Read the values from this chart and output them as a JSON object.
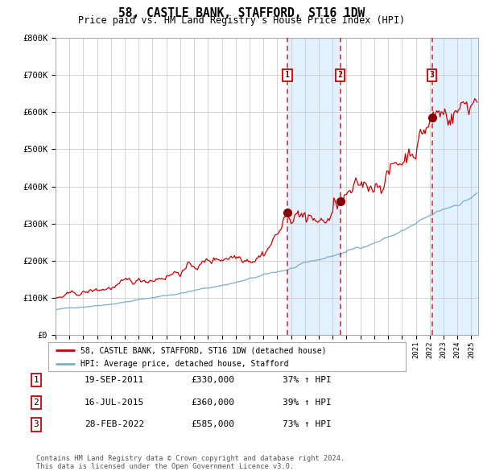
{
  "title": "58, CASTLE BANK, STAFFORD, ST16 1DW",
  "subtitle": "Price paid vs. HM Land Registry's House Price Index (HPI)",
  "ylim": [
    0,
    800000
  ],
  "yticks": [
    0,
    100000,
    200000,
    300000,
    400000,
    500000,
    600000,
    700000,
    800000
  ],
  "ytick_labels": [
    "£0",
    "£100K",
    "£200K",
    "£300K",
    "£400K",
    "£500K",
    "£600K",
    "£700K",
    "£800K"
  ],
  "red_line_color": "#cc0000",
  "blue_line_color": "#7aadcc",
  "bg_color": "#ffffff",
  "grid_color": "#cccccc",
  "sale_dates": [
    2011.72,
    2015.54,
    2022.16
  ],
  "sale_prices": [
    330000,
    360000,
    585000
  ],
  "sale_labels": [
    "1",
    "2",
    "3"
  ],
  "shade_color": "#ddeeff",
  "legend_label_red": "58, CASTLE BANK, STAFFORD, ST16 1DW (detached house)",
  "legend_label_blue": "HPI: Average price, detached house, Stafford",
  "table_data": [
    [
      "1",
      "19-SEP-2011",
      "£330,000",
      "37% ↑ HPI"
    ],
    [
      "2",
      "16-JUL-2015",
      "£360,000",
      "39% ↑ HPI"
    ],
    [
      "3",
      "28-FEB-2022",
      "£585,000",
      "73% ↑ HPI"
    ]
  ],
  "footnote": "Contains HM Land Registry data © Crown copyright and database right 2024.\nThis data is licensed under the Open Government Licence v3.0."
}
